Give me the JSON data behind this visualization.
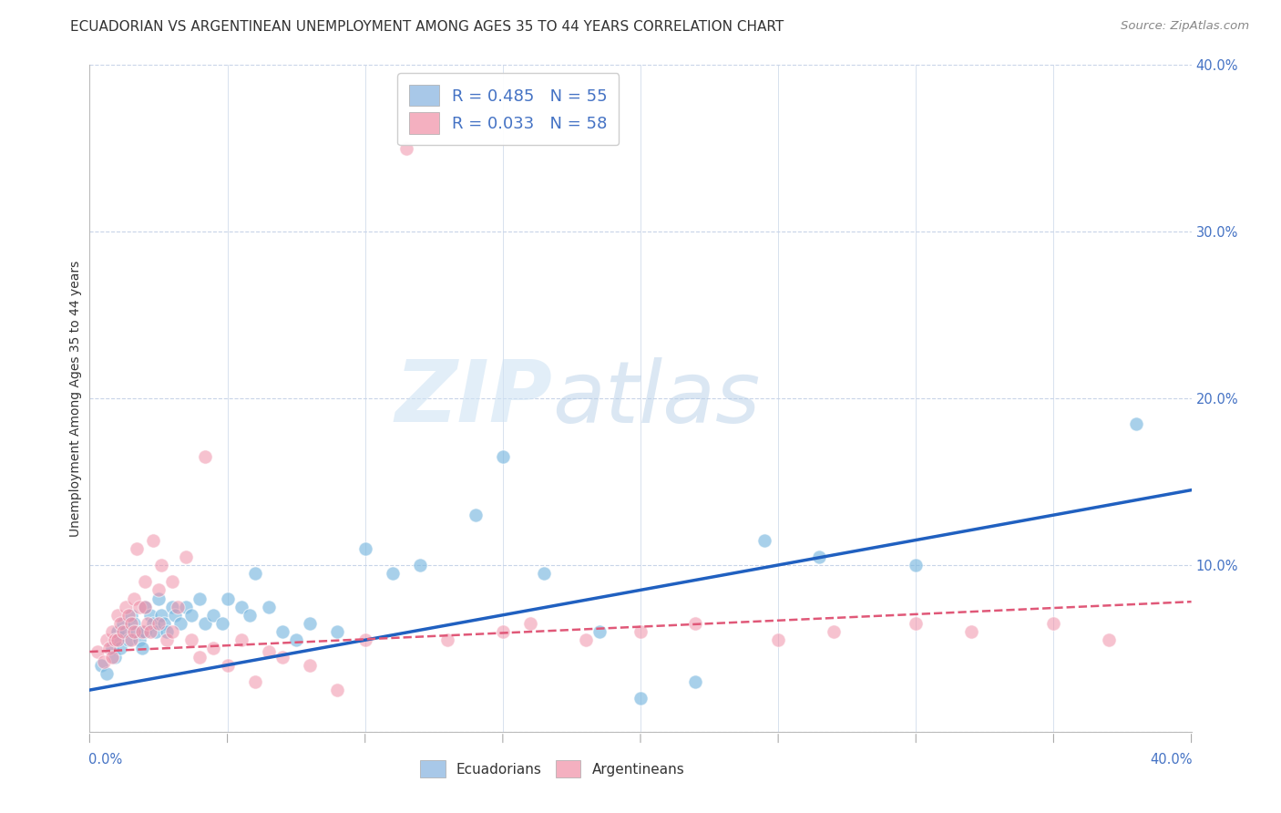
{
  "title": "ECUADORIAN VS ARGENTINEAN UNEMPLOYMENT AMONG AGES 35 TO 44 YEARS CORRELATION CHART",
  "source": "Source: ZipAtlas.com",
  "ylabel": "Unemployment Among Ages 35 to 44 years",
  "xlim": [
    0.0,
    0.4
  ],
  "ylim": [
    0.0,
    0.4
  ],
  "ytick_positions": [
    0.0,
    0.1,
    0.2,
    0.3,
    0.4
  ],
  "legend_entries": [
    {
      "label": "R = 0.485   N = 55",
      "color": "#a8c8e8"
    },
    {
      "label": "R = 0.033   N = 58",
      "color": "#f4b0c0"
    }
  ],
  "watermark_zip": "ZIP",
  "watermark_atlas": "atlas",
  "watermark_zip_color": "#d0e4f4",
  "watermark_atlas_color": "#b8d0e8",
  "blue_scatter_color": "#7ab8e0",
  "pink_scatter_color": "#f090a8",
  "blue_line_color": "#2060c0",
  "pink_line_color": "#e05878",
  "blue_trend_x": [
    0.0,
    0.4
  ],
  "blue_trend_y": [
    0.025,
    0.145
  ],
  "pink_trend_x": [
    0.0,
    0.4
  ],
  "pink_trend_y": [
    0.048,
    0.078
  ],
  "ecuadorians_x": [
    0.004,
    0.006,
    0.008,
    0.009,
    0.01,
    0.01,
    0.011,
    0.012,
    0.013,
    0.014,
    0.015,
    0.016,
    0.017,
    0.018,
    0.019,
    0.02,
    0.02,
    0.022,
    0.023,
    0.024,
    0.025,
    0.026,
    0.027,
    0.028,
    0.03,
    0.031,
    0.033,
    0.035,
    0.037,
    0.04,
    0.042,
    0.045,
    0.048,
    0.05,
    0.055,
    0.058,
    0.06,
    0.065,
    0.07,
    0.075,
    0.08,
    0.09,
    0.1,
    0.11,
    0.12,
    0.14,
    0.15,
    0.165,
    0.185,
    0.2,
    0.22,
    0.245,
    0.265,
    0.3,
    0.38
  ],
  "ecuadorians_y": [
    0.04,
    0.035,
    0.05,
    0.045,
    0.06,
    0.055,
    0.05,
    0.065,
    0.06,
    0.055,
    0.07,
    0.065,
    0.06,
    0.055,
    0.05,
    0.075,
    0.06,
    0.07,
    0.065,
    0.06,
    0.08,
    0.07,
    0.065,
    0.06,
    0.075,
    0.07,
    0.065,
    0.075,
    0.07,
    0.08,
    0.065,
    0.07,
    0.065,
    0.08,
    0.075,
    0.07,
    0.095,
    0.075,
    0.06,
    0.055,
    0.065,
    0.06,
    0.11,
    0.095,
    0.1,
    0.13,
    0.165,
    0.095,
    0.06,
    0.02,
    0.03,
    0.115,
    0.105,
    0.1,
    0.185
  ],
  "argentineans_x": [
    0.003,
    0.005,
    0.006,
    0.007,
    0.008,
    0.008,
    0.009,
    0.01,
    0.01,
    0.011,
    0.012,
    0.013,
    0.014,
    0.015,
    0.015,
    0.016,
    0.016,
    0.017,
    0.018,
    0.019,
    0.02,
    0.02,
    0.021,
    0.022,
    0.023,
    0.025,
    0.025,
    0.026,
    0.028,
    0.03,
    0.03,
    0.032,
    0.035,
    0.037,
    0.04,
    0.042,
    0.045,
    0.05,
    0.055,
    0.06,
    0.065,
    0.07,
    0.08,
    0.09,
    0.1,
    0.115,
    0.13,
    0.15,
    0.16,
    0.18,
    0.2,
    0.22,
    0.25,
    0.27,
    0.3,
    0.32,
    0.35,
    0.37
  ],
  "argentineans_y": [
    0.048,
    0.042,
    0.055,
    0.05,
    0.06,
    0.045,
    0.055,
    0.07,
    0.055,
    0.065,
    0.06,
    0.075,
    0.07,
    0.065,
    0.055,
    0.08,
    0.06,
    0.11,
    0.075,
    0.06,
    0.09,
    0.075,
    0.065,
    0.06,
    0.115,
    0.085,
    0.065,
    0.1,
    0.055,
    0.09,
    0.06,
    0.075,
    0.105,
    0.055,
    0.045,
    0.165,
    0.05,
    0.04,
    0.055,
    0.03,
    0.048,
    0.045,
    0.04,
    0.025,
    0.055,
    0.35,
    0.055,
    0.06,
    0.065,
    0.055,
    0.06,
    0.065,
    0.055,
    0.06,
    0.065,
    0.06,
    0.065,
    0.055
  ],
  "background_color": "#ffffff",
  "grid_color": "#c8d4e8",
  "tick_color": "#4472c4",
  "title_color": "#333333",
  "source_color": "#888888"
}
